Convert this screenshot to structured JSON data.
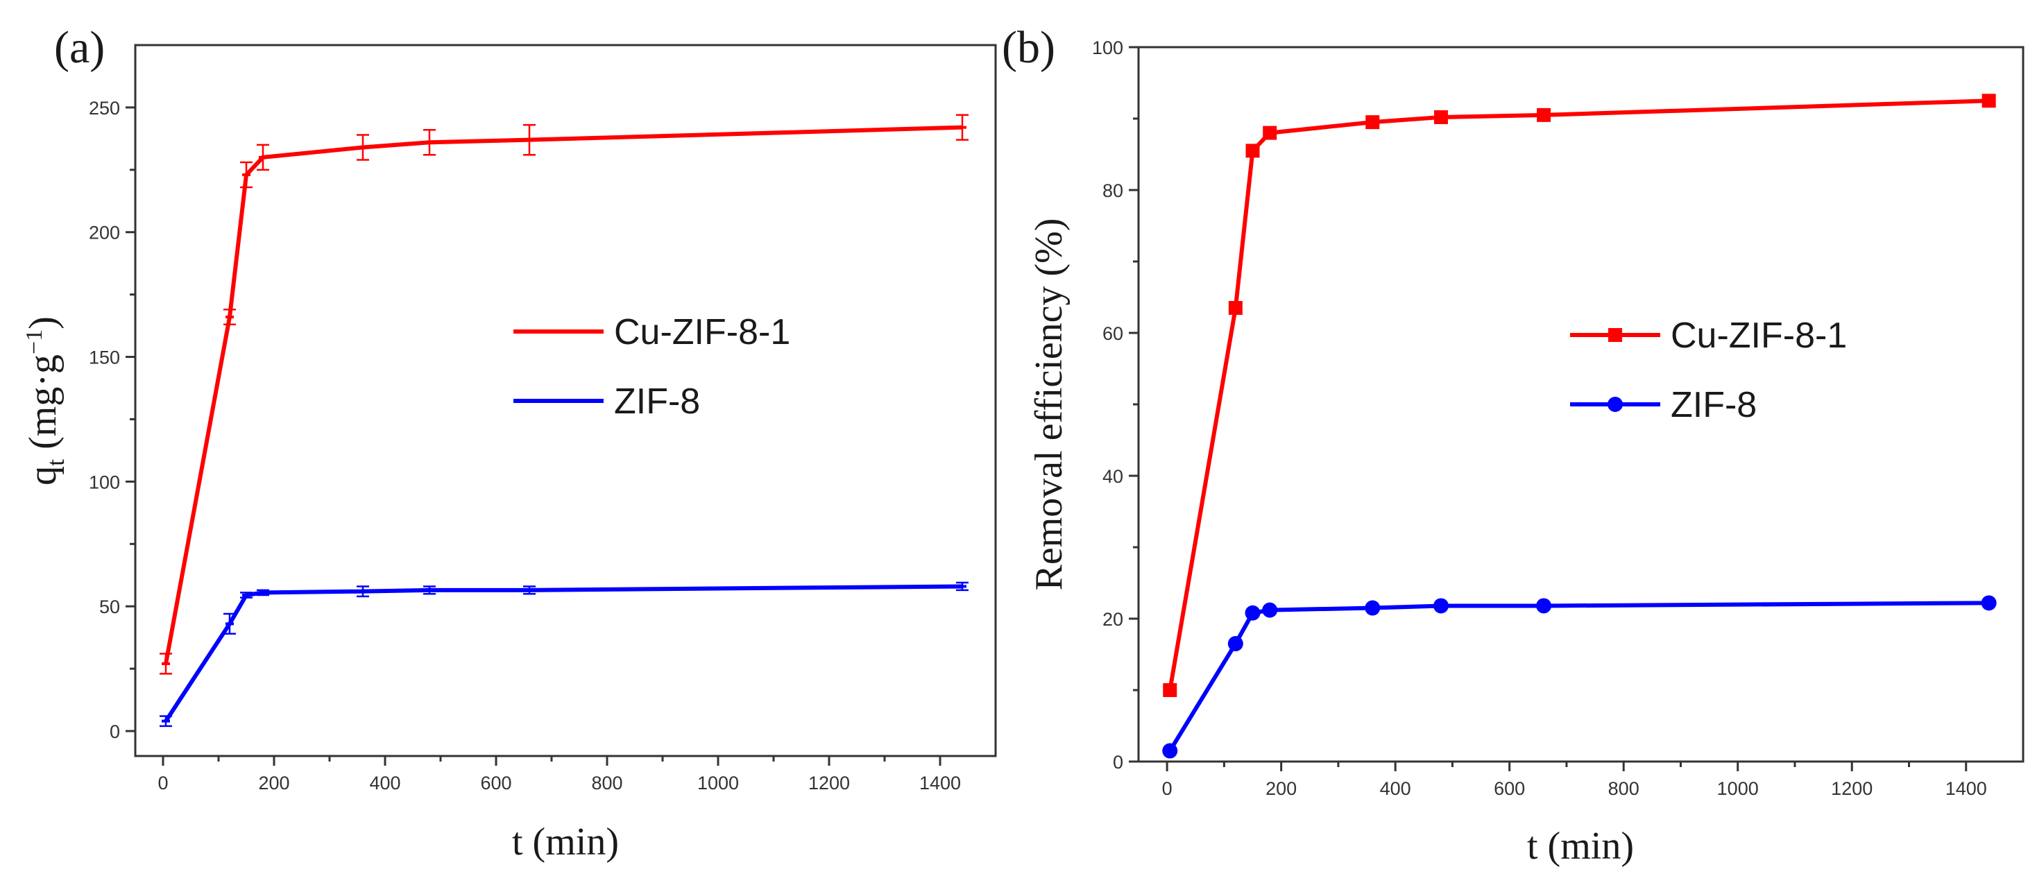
{
  "chart_data": [
    {
      "type": "line",
      "panel_label": "(a)",
      "xlabel": "t (min)",
      "ylabel": "q",
      "ylabel_sub": "t",
      "ylabel_tail": " (mg·g",
      "ylabel_sup": "−1",
      "ylabel_end": ")",
      "xlim": [
        -50,
        1500
      ],
      "ylim": [
        -10,
        275
      ],
      "xticks": [
        0,
        200,
        400,
        600,
        800,
        1000,
        1200,
        1400
      ],
      "yticks": [
        0,
        50,
        100,
        150,
        200,
        250
      ],
      "legend_position": "center-right",
      "series": [
        {
          "name": "Cu-ZIF-8-1",
          "color": "#ff0000",
          "marker": "dash",
          "x": [
            5,
            120,
            150,
            180,
            360,
            480,
            660,
            1440
          ],
          "y": [
            27,
            166,
            223,
            230,
            234,
            236,
            237,
            242
          ],
          "err": [
            4,
            3,
            5,
            5,
            5,
            5,
            6,
            5
          ]
        },
        {
          "name": "ZIF-8",
          "color": "#0000ff",
          "marker": "dash",
          "x": [
            5,
            120,
            150,
            180,
            360,
            480,
            660,
            1440
          ],
          "y": [
            4,
            43,
            54.5,
            55.5,
            56,
            56.5,
            56.5,
            58
          ],
          "err": [
            2,
            4,
            1,
            1,
            2,
            1.5,
            1.5,
            1.5
          ]
        }
      ]
    },
    {
      "type": "line",
      "panel_label": "(b)",
      "xlabel": "t (min)",
      "ylabel": "Removal efficiency (%)",
      "xlim": [
        -50,
        1500
      ],
      "ylim": [
        0,
        100
      ],
      "xticks": [
        0,
        200,
        400,
        600,
        800,
        1000,
        1200,
        1400
      ],
      "yticks": [
        0,
        20,
        40,
        60,
        80,
        100
      ],
      "legend_position": "center-right",
      "series": [
        {
          "name": "Cu-ZIF-8-1",
          "color": "#ff0000",
          "marker": "square",
          "x": [
            5,
            120,
            150,
            180,
            360,
            480,
            660,
            1440
          ],
          "y": [
            10,
            63.5,
            85.5,
            88,
            89.5,
            90.2,
            90.5,
            92.5
          ]
        },
        {
          "name": "ZIF-8",
          "color": "#0000ff",
          "marker": "circle",
          "x": [
            5,
            120,
            150,
            180,
            360,
            480,
            660,
            1440
          ],
          "y": [
            1.5,
            16.5,
            20.8,
            21.2,
            21.5,
            21.8,
            21.8,
            22.2
          ]
        }
      ]
    }
  ]
}
